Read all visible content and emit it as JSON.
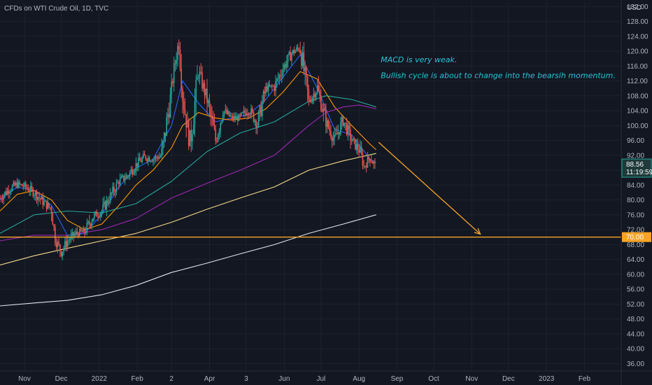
{
  "chart_data": {
    "type": "line",
    "title": "CFDs on WTI Crude Oil, 1D, TVC",
    "currency": "USD",
    "y_ticks": [
      132,
      128,
      124,
      120,
      116,
      112,
      108,
      104,
      100,
      96,
      92,
      88,
      84,
      80,
      76,
      72,
      68,
      64,
      60,
      56,
      52,
      48,
      44,
      40,
      36
    ],
    "y_tick_labels": [
      "132.00",
      "128.00",
      "124.00",
      "120.00",
      "116.00",
      "112.00",
      "108.00",
      "104.00",
      "100.00",
      "96.00",
      "92.00",
      "88.00",
      "84.00",
      "80.00",
      "76.00",
      "72.00",
      "68.00",
      "64.00",
      "60.00",
      "56.00",
      "52.00",
      "48.00",
      "44.00",
      "40.00",
      "36.00"
    ],
    "ylim": [
      34,
      133
    ],
    "x_range": [
      "2021-10-12",
      "2023-03-03"
    ],
    "x_ticks": [
      {
        "label": "Nov",
        "date": "2021-11-01"
      },
      {
        "label": "Dec",
        "date": "2021-12-01"
      },
      {
        "label": "2022",
        "date": "2022-01-01"
      },
      {
        "label": "Feb",
        "date": "2022-02-01"
      },
      {
        "label": "2",
        "date": "2022-03-01"
      },
      {
        "label": "Apr",
        "date": "2022-04-01"
      },
      {
        "label": "3",
        "date": "2022-05-01"
      },
      {
        "label": "Jun",
        "date": "2022-06-01"
      },
      {
        "label": "Jul",
        "date": "2022-07-01"
      },
      {
        "label": "Aug",
        "date": "2022-08-01"
      },
      {
        "label": "Sep",
        "date": "2022-09-01"
      },
      {
        "label": "Oct",
        "date": "2022-10-01"
      },
      {
        "label": "Nov",
        "date": "2022-11-01"
      },
      {
        "label": "Dec",
        "date": "2022-12-01"
      },
      {
        "label": "2023",
        "date": "2023-01-01"
      },
      {
        "label": "Feb",
        "date": "2023-02-01"
      }
    ],
    "current_price": {
      "value": 88.56,
      "label": "88.56",
      "countdown": "11:19:59"
    },
    "level_line": {
      "value": 70.0,
      "label": "70.00",
      "color": "#f7a427"
    },
    "arrow": {
      "from": {
        "date": "2022-08-17",
        "y": 95.5
      },
      "to": {
        "date": "2022-11-08",
        "y": 70.8
      },
      "color": "#f7a427"
    },
    "annotations": [
      {
        "text": "MACD is very weak.",
        "date": "2022-08-17",
        "y": 117.8
      },
      {
        "text": "Bullish cycle is about to change into the bearsih momentum.",
        "date": "2022-08-17",
        "y": 113.5
      }
    ],
    "price_series": [
      {
        "date": "2021-10-12",
        "y": 80.5
      },
      {
        "date": "2021-10-19",
        "y": 82.8
      },
      {
        "date": "2021-10-26",
        "y": 84.2
      },
      {
        "date": "2021-11-02",
        "y": 83.5
      },
      {
        "date": "2021-11-09",
        "y": 82.0
      },
      {
        "date": "2021-11-16",
        "y": 79.5
      },
      {
        "date": "2021-11-23",
        "y": 77.5
      },
      {
        "date": "2021-11-26",
        "y": 69.5
      },
      {
        "date": "2021-12-01",
        "y": 66.0
      },
      {
        "date": "2021-12-06",
        "y": 69.0
      },
      {
        "date": "2021-12-13",
        "y": 71.0
      },
      {
        "date": "2021-12-20",
        "y": 71.5
      },
      {
        "date": "2021-12-27",
        "y": 75.5
      },
      {
        "date": "2022-01-03",
        "y": 77.0
      },
      {
        "date": "2022-01-10",
        "y": 81.0
      },
      {
        "date": "2022-01-17",
        "y": 85.0
      },
      {
        "date": "2022-01-24",
        "y": 86.5
      },
      {
        "date": "2022-01-31",
        "y": 89.5
      },
      {
        "date": "2022-02-07",
        "y": 91.5
      },
      {
        "date": "2022-02-14",
        "y": 91.0
      },
      {
        "date": "2022-02-21",
        "y": 92.0
      },
      {
        "date": "2022-02-28",
        "y": 107.5
      },
      {
        "date": "2022-03-03",
        "y": 115.0
      },
      {
        "date": "2022-03-07",
        "y": 123.0
      },
      {
        "date": "2022-03-10",
        "y": 108.0
      },
      {
        "date": "2022-03-16",
        "y": 95.0
      },
      {
        "date": "2022-03-23",
        "y": 114.5
      },
      {
        "date": "2022-03-30",
        "y": 107.0
      },
      {
        "date": "2022-04-06",
        "y": 96.0
      },
      {
        "date": "2022-04-12",
        "y": 104.0
      },
      {
        "date": "2022-04-19",
        "y": 102.0
      },
      {
        "date": "2022-04-26",
        "y": 102.0
      },
      {
        "date": "2022-05-03",
        "y": 104.5
      },
      {
        "date": "2022-05-10",
        "y": 100.5
      },
      {
        "date": "2022-05-17",
        "y": 110.0
      },
      {
        "date": "2022-05-24",
        "y": 110.5
      },
      {
        "date": "2022-05-31",
        "y": 115.5
      },
      {
        "date": "2022-06-07",
        "y": 119.5
      },
      {
        "date": "2022-06-14",
        "y": 121.0
      },
      {
        "date": "2022-06-21",
        "y": 106.5
      },
      {
        "date": "2022-06-28",
        "y": 110.0
      },
      {
        "date": "2022-07-05",
        "y": 101.0
      },
      {
        "date": "2022-07-12",
        "y": 96.0
      },
      {
        "date": "2022-07-19",
        "y": 101.5
      },
      {
        "date": "2022-07-26",
        "y": 96.0
      },
      {
        "date": "2022-08-02",
        "y": 93.0
      },
      {
        "date": "2022-08-05",
        "y": 89.0
      },
      {
        "date": "2022-08-10",
        "y": 91.5
      },
      {
        "date": "2022-08-15",
        "y": 88.56
      }
    ],
    "series": [
      {
        "name": "",
        "color": "#2962ff",
        "data": [
          {
            "date": "2021-10-12",
            "y": 80.0
          },
          {
            "date": "2021-10-26",
            "y": 83.5
          },
          {
            "date": "2021-11-09",
            "y": 82.5
          },
          {
            "date": "2021-11-23",
            "y": 78.5
          },
          {
            "date": "2021-12-06",
            "y": 70.5
          },
          {
            "date": "2021-12-20",
            "y": 71.0
          },
          {
            "date": "2022-01-03",
            "y": 76.0
          },
          {
            "date": "2022-01-17",
            "y": 83.5
          },
          {
            "date": "2022-01-31",
            "y": 88.5
          },
          {
            "date": "2022-02-14",
            "y": 91.0
          },
          {
            "date": "2022-03-01",
            "y": 100.0
          },
          {
            "date": "2022-03-10",
            "y": 112.0
          },
          {
            "date": "2022-03-23",
            "y": 106.0
          },
          {
            "date": "2022-04-06",
            "y": 101.0
          },
          {
            "date": "2022-04-19",
            "y": 102.0
          },
          {
            "date": "2022-05-03",
            "y": 103.0
          },
          {
            "date": "2022-05-17",
            "y": 107.0
          },
          {
            "date": "2022-05-31",
            "y": 113.0
          },
          {
            "date": "2022-06-14",
            "y": 119.0
          },
          {
            "date": "2022-06-28",
            "y": 110.0
          },
          {
            "date": "2022-07-12",
            "y": 99.0
          },
          {
            "date": "2022-07-26",
            "y": 97.5
          },
          {
            "date": "2022-08-10",
            "y": 91.0
          },
          {
            "date": "2022-08-15",
            "y": 90.0
          }
        ]
      },
      {
        "name": "",
        "color": "#ff9800",
        "data": [
          {
            "date": "2021-10-12",
            "y": 77.0
          },
          {
            "date": "2021-10-26",
            "y": 81.5
          },
          {
            "date": "2021-11-09",
            "y": 82.5
          },
          {
            "date": "2021-11-23",
            "y": 80.0
          },
          {
            "date": "2021-12-06",
            "y": 74.5
          },
          {
            "date": "2021-12-20",
            "y": 72.0
          },
          {
            "date": "2022-01-03",
            "y": 73.5
          },
          {
            "date": "2022-01-17",
            "y": 78.5
          },
          {
            "date": "2022-01-31",
            "y": 84.0
          },
          {
            "date": "2022-02-14",
            "y": 88.0
          },
          {
            "date": "2022-03-01",
            "y": 94.0
          },
          {
            "date": "2022-03-10",
            "y": 100.0
          },
          {
            "date": "2022-03-23",
            "y": 103.5
          },
          {
            "date": "2022-04-06",
            "y": 102.0
          },
          {
            "date": "2022-04-19",
            "y": 101.5
          },
          {
            "date": "2022-05-03",
            "y": 102.0
          },
          {
            "date": "2022-05-17",
            "y": 104.5
          },
          {
            "date": "2022-05-31",
            "y": 109.0
          },
          {
            "date": "2022-06-14",
            "y": 114.5
          },
          {
            "date": "2022-06-28",
            "y": 112.5
          },
          {
            "date": "2022-07-12",
            "y": 105.0
          },
          {
            "date": "2022-07-26",
            "y": 100.0
          },
          {
            "date": "2022-08-10",
            "y": 95.0
          },
          {
            "date": "2022-08-15",
            "y": 93.5
          }
        ]
      },
      {
        "name": "",
        "color": "#26a69a",
        "data": [
          {
            "date": "2021-10-12",
            "y": 71.0
          },
          {
            "date": "2021-11-09",
            "y": 76.0
          },
          {
            "date": "2021-12-06",
            "y": 77.0
          },
          {
            "date": "2022-01-03",
            "y": 76.5
          },
          {
            "date": "2022-01-31",
            "y": 79.0
          },
          {
            "date": "2022-03-01",
            "y": 85.0
          },
          {
            "date": "2022-03-30",
            "y": 93.0
          },
          {
            "date": "2022-04-26",
            "y": 98.0
          },
          {
            "date": "2022-05-24",
            "y": 101.0
          },
          {
            "date": "2022-06-21",
            "y": 106.5
          },
          {
            "date": "2022-07-05",
            "y": 108.0
          },
          {
            "date": "2022-07-26",
            "y": 107.0
          },
          {
            "date": "2022-08-15",
            "y": 105.0
          }
        ]
      },
      {
        "name": "",
        "color": "#9c27b0",
        "data": [
          {
            "date": "2021-10-12",
            "y": 69.0
          },
          {
            "date": "2021-11-09",
            "y": 70.5
          },
          {
            "date": "2021-12-06",
            "y": 70.5
          },
          {
            "date": "2022-01-03",
            "y": 72.0
          },
          {
            "date": "2022-01-31",
            "y": 75.0
          },
          {
            "date": "2022-03-01",
            "y": 80.5
          },
          {
            "date": "2022-03-30",
            "y": 84.5
          },
          {
            "date": "2022-04-26",
            "y": 88.0
          },
          {
            "date": "2022-05-24",
            "y": 92.0
          },
          {
            "date": "2022-06-21",
            "y": 100.0
          },
          {
            "date": "2022-07-05",
            "y": 103.5
          },
          {
            "date": "2022-07-19",
            "y": 105.0
          },
          {
            "date": "2022-08-01",
            "y": 105.5
          },
          {
            "date": "2022-08-15",
            "y": 104.5
          }
        ]
      },
      {
        "name": "",
        "color": "#f5d88a",
        "data": [
          {
            "date": "2021-10-12",
            "y": 62.5
          },
          {
            "date": "2021-11-09",
            "y": 65.0
          },
          {
            "date": "2021-12-06",
            "y": 67.0
          },
          {
            "date": "2022-01-03",
            "y": 69.0
          },
          {
            "date": "2022-01-31",
            "y": 71.0
          },
          {
            "date": "2022-03-01",
            "y": 74.0
          },
          {
            "date": "2022-03-30",
            "y": 77.5
          },
          {
            "date": "2022-04-26",
            "y": 80.5
          },
          {
            "date": "2022-05-24",
            "y": 83.5
          },
          {
            "date": "2022-06-21",
            "y": 88.0
          },
          {
            "date": "2022-07-19",
            "y": 90.5
          },
          {
            "date": "2022-08-15",
            "y": 92.5
          }
        ]
      },
      {
        "name": "",
        "color": "#e0e3eb",
        "data": [
          {
            "date": "2021-10-12",
            "y": 51.5
          },
          {
            "date": "2021-11-09",
            "y": 52.3
          },
          {
            "date": "2021-12-06",
            "y": 53.0
          },
          {
            "date": "2022-01-03",
            "y": 54.5
          },
          {
            "date": "2022-01-31",
            "y": 57.0
          },
          {
            "date": "2022-03-01",
            "y": 60.5
          },
          {
            "date": "2022-03-30",
            "y": 63.0
          },
          {
            "date": "2022-04-26",
            "y": 65.5
          },
          {
            "date": "2022-05-24",
            "y": 68.0
          },
          {
            "date": "2022-06-21",
            "y": 71.0
          },
          {
            "date": "2022-07-19",
            "y": 73.5
          },
          {
            "date": "2022-08-15",
            "y": 76.0
          }
        ]
      }
    ],
    "grid": true,
    "colors": {
      "background": "#131722",
      "grid": "#1e222d",
      "up": "#26a69a",
      "down": "#ef5350",
      "price_tag": "#2a2e39",
      "price_tag_border": "#26a69a",
      "text": "#b2b5be",
      "note": "#26c6da"
    }
  }
}
